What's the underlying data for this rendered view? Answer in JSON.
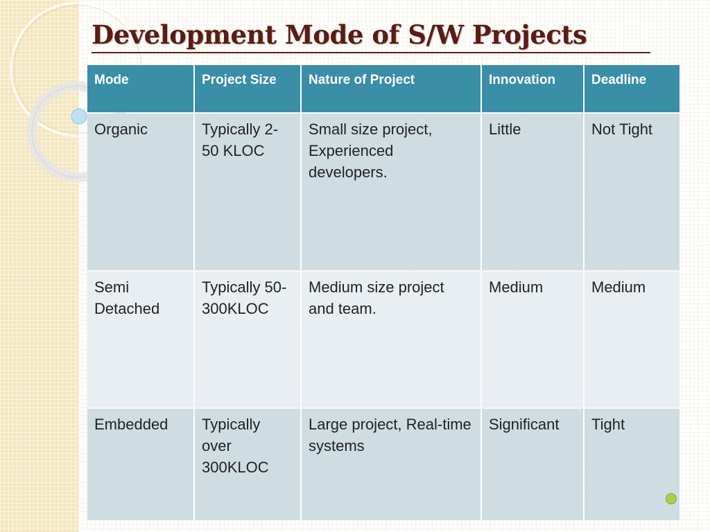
{
  "slide": {
    "title": "Development Mode of S/W Projects"
  },
  "table": {
    "headers": [
      "Mode",
      "Project Size",
      "Nature of Project",
      "Innovation",
      "Deadline"
    ],
    "rows": [
      {
        "mode": "Organic",
        "size": "Typically 2-50 KLOC",
        "nature": "Small size project, Experienced developers.",
        "innovation": "Little",
        "deadline": "Not Tight"
      },
      {
        "mode": "Semi Detached",
        "size": "Typically 50-300KLOC",
        "nature": "Medium size project and team.",
        "innovation": "Medium",
        "deadline": "Medium"
      },
      {
        "mode": "Embedded",
        "size": "Typically over 300KLOC",
        "nature": "Large project, Real-time systems",
        "innovation": "Significant",
        "deadline": "Tight"
      }
    ]
  },
  "colors": {
    "header_bg": "#3a8ea8",
    "row_odd_bg": "#cfdde2",
    "row_even_bg": "#e8eef1",
    "title_color": "#5a1c14"
  }
}
